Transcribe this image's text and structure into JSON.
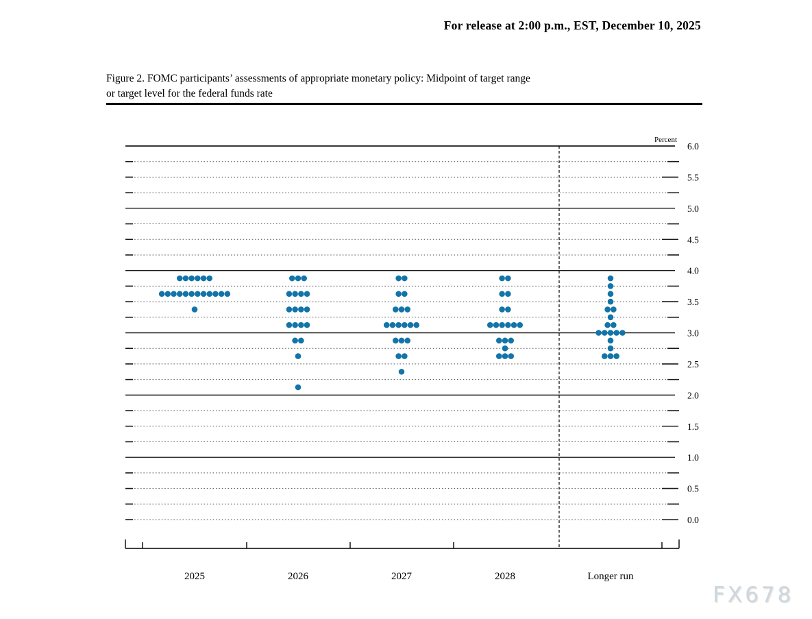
{
  "header": {
    "release_line": "For release at 2:00 p.m., EST, December 10, 2025",
    "figure_title_line1": "Figure 2. FOMC participants’ assessments of appropriate monetary policy: Midpoint of target range",
    "figure_title_line2": "or target level for the federal funds rate"
  },
  "watermark": {
    "text": "FX678"
  },
  "chart_data": {
    "type": "scatter",
    "title": "Figure 2. FOMC participants’ assessments of appropriate monetary policy: Midpoint of target range or target level for the federal funds rate",
    "unit_label": "Percent",
    "categories": [
      "2025",
      "2026",
      "2027",
      "2028",
      "Longer run"
    ],
    "ylabel": "Percent",
    "ylim": [
      0.0,
      6.0
    ],
    "ytick_labels": [
      "6.0",
      "5.5",
      "5.0",
      "4.5",
      "4.0",
      "3.5",
      "3.0",
      "2.5",
      "2.0",
      "1.5",
      "1.0",
      "0.5",
      "0.0"
    ],
    "ytick_label_step": 0.5,
    "grid_minor_step": 0.25,
    "grid_solid_on_integers": true,
    "legend_position": "none",
    "dot_color": "#1274a8",
    "divider_after_category": "2028",
    "series": [
      {
        "name": "2025",
        "dots": [
          {
            "rate": 3.875,
            "count": 6
          },
          {
            "rate": 3.625,
            "count": 12
          },
          {
            "rate": 3.375,
            "count": 1
          }
        ]
      },
      {
        "name": "2026",
        "dots": [
          {
            "rate": 3.875,
            "count": 3
          },
          {
            "rate": 3.625,
            "count": 4
          },
          {
            "rate": 3.375,
            "count": 4
          },
          {
            "rate": 3.125,
            "count": 4
          },
          {
            "rate": 2.875,
            "count": 2
          },
          {
            "rate": 2.625,
            "count": 1
          },
          {
            "rate": 2.125,
            "count": 1
          }
        ]
      },
      {
        "name": "2027",
        "dots": [
          {
            "rate": 3.875,
            "count": 2
          },
          {
            "rate": 3.625,
            "count": 2
          },
          {
            "rate": 3.375,
            "count": 3
          },
          {
            "rate": 3.125,
            "count": 6
          },
          {
            "rate": 2.875,
            "count": 3
          },
          {
            "rate": 2.625,
            "count": 2
          },
          {
            "rate": 2.375,
            "count": 1
          }
        ]
      },
      {
        "name": "2028",
        "dots": [
          {
            "rate": 3.875,
            "count": 2
          },
          {
            "rate": 3.625,
            "count": 2
          },
          {
            "rate": 3.375,
            "count": 2
          },
          {
            "rate": 3.125,
            "count": 6
          },
          {
            "rate": 2.875,
            "count": 3
          },
          {
            "rate": 2.75,
            "count": 1
          },
          {
            "rate": 2.625,
            "count": 3
          }
        ]
      },
      {
        "name": "Longer run",
        "dots": [
          {
            "rate": 3.875,
            "count": 1
          },
          {
            "rate": 3.75,
            "count": 1
          },
          {
            "rate": 3.625,
            "count": 1
          },
          {
            "rate": 3.5,
            "count": 1
          },
          {
            "rate": 3.375,
            "count": 2
          },
          {
            "rate": 3.25,
            "count": 1
          },
          {
            "rate": 3.125,
            "count": 2
          },
          {
            "rate": 3.0,
            "count": 5
          },
          {
            "rate": 2.875,
            "count": 1
          },
          {
            "rate": 2.75,
            "count": 1
          },
          {
            "rate": 2.625,
            "count": 3
          }
        ]
      }
    ]
  }
}
